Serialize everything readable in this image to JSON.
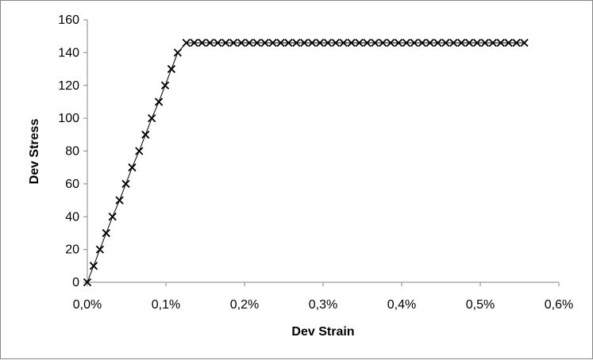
{
  "chart_data": {
    "type": "scatter",
    "xlabel": "Dev Strain",
    "ylabel": "Dev Stress",
    "xlim": [
      0,
      0.6
    ],
    "ylim": [
      0,
      160
    ],
    "x_ticks": [
      0,
      0.1,
      0.2,
      0.3,
      0.4,
      0.5,
      0.6
    ],
    "x_tick_labels": [
      "0,0%",
      "0,1%",
      "0,2%",
      "0,3%",
      "0,4%",
      "0,5%",
      "0,6%"
    ],
    "y_ticks": [
      0,
      20,
      40,
      60,
      80,
      100,
      120,
      140,
      160
    ],
    "y_tick_labels": [
      "0",
      "20",
      "40",
      "60",
      "80",
      "100",
      "120",
      "140",
      "160"
    ],
    "grid": false,
    "legend": "none",
    "series": [
      {
        "marker": "x",
        "line": "solid",
        "color": "#000000",
        "x": [
          0,
          0.008,
          0.016,
          0.024,
          0.032,
          0.041,
          0.049,
          0.057,
          0.066,
          0.074,
          0.082,
          0.091,
          0.099,
          0.107,
          0.115,
          0.126,
          0.136,
          0.146,
          0.156,
          0.166,
          0.176,
          0.186,
          0.196,
          0.206,
          0.216,
          0.226,
          0.236,
          0.246,
          0.256,
          0.266,
          0.276,
          0.286,
          0.296,
          0.306,
          0.316,
          0.326,
          0.336,
          0.346,
          0.356,
          0.366,
          0.376,
          0.386,
          0.396,
          0.406,
          0.416,
          0.426,
          0.436,
          0.446,
          0.456,
          0.466,
          0.476,
          0.486,
          0.496,
          0.506,
          0.516,
          0.526,
          0.536,
          0.546,
          0.556
        ],
        "y": [
          0,
          10,
          20,
          30,
          40,
          50,
          60,
          70,
          80,
          90,
          100,
          110,
          120,
          130,
          140,
          146,
          146,
          146,
          146,
          146,
          146,
          146,
          146,
          146,
          146,
          146,
          146,
          146,
          146,
          146,
          146,
          146,
          146,
          146,
          146,
          146,
          146,
          146,
          146,
          146,
          146,
          146,
          146,
          146,
          146,
          146,
          146,
          146,
          146,
          146,
          146,
          146,
          146,
          146,
          146,
          146,
          146,
          146,
          146
        ]
      }
    ]
  }
}
